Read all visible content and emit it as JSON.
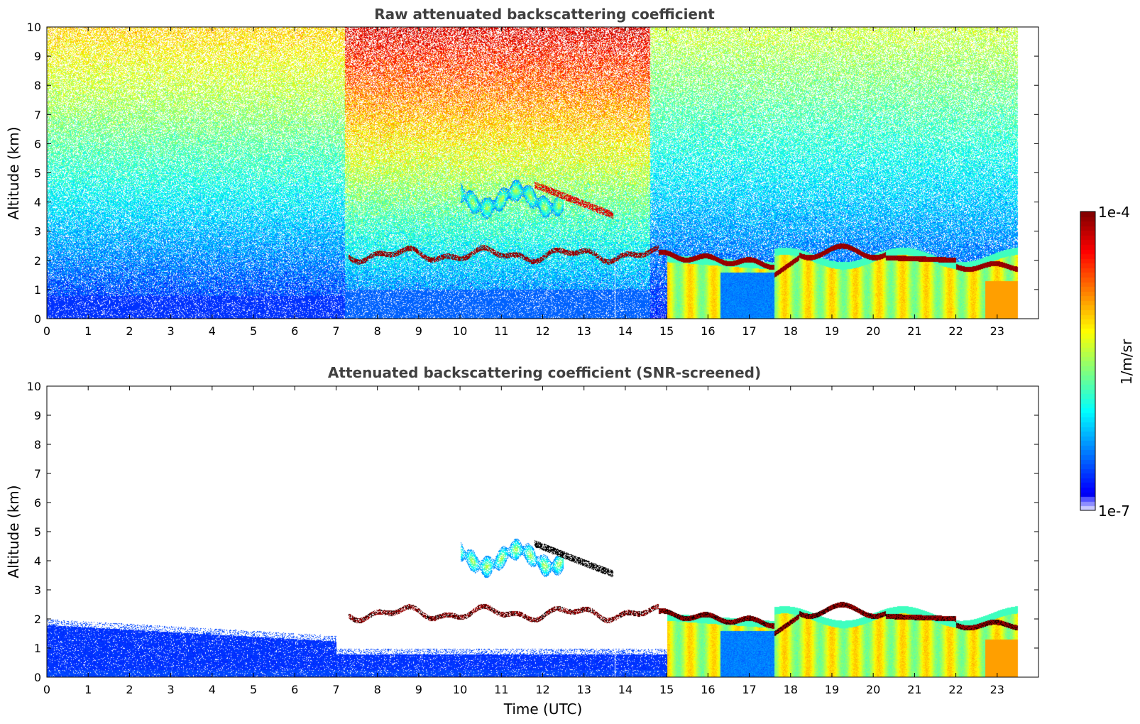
{
  "chart_data": [
    {
      "type": "heatmap",
      "title": "Raw attenuated backscattering coefficient",
      "xlabel": "",
      "ylabel": "Altitude (km)",
      "xlim": [
        0,
        24
      ],
      "ylim": [
        0,
        10
      ],
      "xticks": [
        0,
        1,
        2,
        3,
        4,
        5,
        6,
        7,
        8,
        9,
        10,
        11,
        12,
        13,
        14,
        15,
        16,
        17,
        18,
        19,
        20,
        21,
        22,
        23
      ],
      "yticks": [
        0,
        1,
        2,
        3,
        4,
        5,
        6,
        7,
        8,
        9,
        10
      ],
      "data_end_time": 23.5,
      "screened": false,
      "features": [
        {
          "kind": "cloud_layer",
          "t_start": 7.3,
          "t_end": 14.8,
          "altitude_km": 2.2
        },
        {
          "kind": "cloud_layer",
          "t_start": 14.8,
          "t_end": 23.5,
          "altitude_km": 1.9
        },
        {
          "kind": "boundary_layer",
          "t_start": 15.0,
          "t_end": 23.5,
          "top_km": 2.4
        },
        {
          "kind": "elevated_aerosol",
          "t_start": 10.0,
          "t_end": 13.7,
          "altitude_km": 4.2
        },
        {
          "kind": "noisy_upper_atmosphere",
          "t_start": 7.2,
          "t_end": 14.5,
          "altitude_km": 8.5
        }
      ]
    },
    {
      "type": "heatmap",
      "title": "Attenuated backscattering coefficient (SNR-screened)",
      "xlabel": "Time (UTC)",
      "ylabel": "Altitude (km)",
      "xlim": [
        0,
        24
      ],
      "ylim": [
        0,
        10
      ],
      "xticks": [
        0,
        1,
        2,
        3,
        4,
        5,
        6,
        7,
        8,
        9,
        10,
        11,
        12,
        13,
        14,
        15,
        16,
        17,
        18,
        19,
        20,
        21,
        22,
        23
      ],
      "yticks": [
        0,
        1,
        2,
        3,
        4,
        5,
        6,
        7,
        8,
        9,
        10
      ],
      "data_end_time": 23.5,
      "screened": true,
      "features": [
        {
          "kind": "cloud_layer",
          "t_start": 7.3,
          "t_end": 14.8,
          "altitude_km": 2.2
        },
        {
          "kind": "cloud_layer",
          "t_start": 14.8,
          "t_end": 23.5,
          "altitude_km": 1.9
        },
        {
          "kind": "boundary_layer",
          "t_start": 15.0,
          "t_end": 23.5,
          "top_km": 2.4
        },
        {
          "kind": "elevated_aerosol",
          "t_start": 10.0,
          "t_end": 13.7,
          "altitude_km": 4.2
        },
        {
          "kind": "surface_layer",
          "t_start": 0.0,
          "t_end": 15.0,
          "top_km": 1.8
        }
      ]
    }
  ],
  "colorbar": {
    "min_label": "1e-7",
    "max_label": "1e-4",
    "label": "1/m/sr",
    "colormap": "jet",
    "scale": "log",
    "range": [
      1e-07,
      0.0001
    ]
  }
}
